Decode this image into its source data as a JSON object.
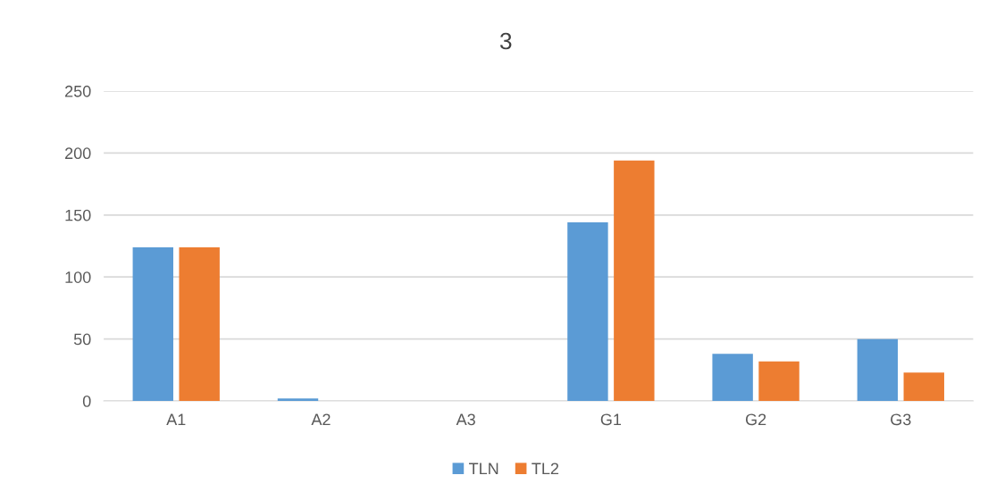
{
  "chart_data": {
    "type": "bar",
    "title": "3",
    "categories": [
      "A1",
      "A2",
      "A3",
      "G1",
      "G2",
      "G3"
    ],
    "series": [
      {
        "name": "TLN",
        "color": "#5b9bd5",
        "values": [
          124,
          2,
          0,
          144,
          38,
          50
        ]
      },
      {
        "name": "TL2",
        "color": "#ed7d31",
        "values": [
          124,
          0,
          0,
          194,
          32,
          23
        ]
      }
    ],
    "ylim": [
      0,
      250
    ],
    "yticks": [
      0,
      50,
      100,
      150,
      200,
      250
    ],
    "grid": "y",
    "legend": "bottom"
  }
}
